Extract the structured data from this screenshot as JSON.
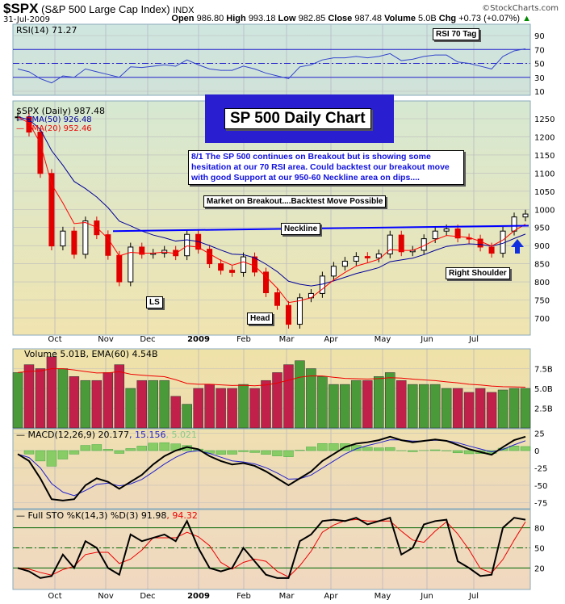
{
  "header": {
    "symbol": "$SPX",
    "name": "(S&P 500 Large Cap Index)",
    "exchange": "INDX",
    "date": "31-Jul-2009",
    "copyright": "©StockCharts.com",
    "open_label": "Open",
    "open": "986.80",
    "high_label": "High",
    "high": "993.18",
    "low_label": "Low",
    "low": "982.85",
    "close_label": "Close",
    "close": "987.48",
    "volume_label": "Volume",
    "volume": "5.0B",
    "chg_label": "Chg",
    "chg": "+0.73 (+0.07%)"
  },
  "legends": {
    "rsi": "RSI(14) 71.27",
    "price": "$SPX (Daily) 987.48",
    "ema50": "EMA(50) 926.48",
    "ema20": "EMA(20) 952.46",
    "volume": "Volume 5.01B, EMA(60) 4.54B",
    "macd": "MACD(12,26,9) 20.177",
    "macd_signal": ", 15.156",
    "macd_hist": ", 5.021",
    "sto": "Full STO %K(14,3) %D(3) 91.98",
    "sto_d": ", 94.32"
  },
  "annotations": {
    "title": "SP 500 Daily Chart",
    "comment": "8/1  The SP 500 continues on Breakout but is showing some hesitation at our 70 RSI area.  Could backtest our breakout move with good Support at our 950-60 Neckline area on dips....",
    "breakout": "Market on Breakout....Backtest Move Possible",
    "neckline": "Neckline",
    "right_shoulder": "Right Shoulder",
    "ls": "LS",
    "head": "Head",
    "rsi_tag": "RSI 70 Tag"
  },
  "colors": {
    "up": "#000000",
    "down": "#e00000",
    "ema20": "#ff0000",
    "ema50": "#000099",
    "neckline": "#0000ff",
    "vol_up": "#4a9a3a",
    "vol_down": "#c0204a"
  },
  "chart_data": {
    "type": "line",
    "x_ticks": [
      "Oct",
      "Nov",
      "Dec",
      "2009",
      "Feb",
      "Mar",
      "Apr",
      "May",
      "Jun",
      "Jul"
    ],
    "price": {
      "y_ticks": [
        700,
        750,
        800,
        850,
        900,
        950,
        1000,
        1050,
        1100,
        1150,
        1200,
        1250
      ],
      "close": [
        1255,
        1213,
        1099,
        899,
        940,
        876,
        968,
        930,
        873,
        800,
        896,
        876,
        879,
        887,
        872,
        931,
        890,
        850,
        832,
        826,
        869,
        827,
        770,
        735,
        683,
        756,
        768,
        816,
        843,
        857,
        870,
        866,
        877,
        929,
        883,
        887,
        919,
        940,
        946,
        921,
        918,
        896,
        879,
        940,
        979,
        987
      ],
      "neckline": [
        940,
        955
      ]
    },
    "rsi": {
      "y_ticks": [
        10,
        30,
        50,
        70,
        90
      ],
      "values": [
        42,
        38,
        28,
        22,
        32,
        30,
        42,
        38,
        34,
        30,
        45,
        44,
        46,
        48,
        46,
        55,
        48,
        42,
        40,
        40,
        46,
        42,
        36,
        32,
        28,
        45,
        48,
        55,
        58,
        58,
        60,
        58,
        60,
        64,
        54,
        56,
        60,
        62,
        62,
        52,
        50,
        46,
        42,
        60,
        68,
        71
      ]
    },
    "volume": {
      "y_ticks": [
        "2.5B",
        "5.0B",
        "7.5B"
      ],
      "values": [
        7,
        8,
        7.5,
        9,
        7.5,
        6.5,
        6,
        6,
        7,
        8,
        5,
        6,
        6,
        6,
        4,
        3,
        5,
        5.5,
        5,
        5,
        5.5,
        5,
        6,
        7,
        8,
        8.5,
        7.5,
        6.5,
        5.5,
        5.5,
        6,
        6,
        6.5,
        7,
        6,
        5.5,
        5.5,
        5.5,
        5,
        5,
        4.5,
        5,
        4.5,
        4.8,
        5,
        5
      ]
    },
    "macd": {
      "y_ticks": [
        -75,
        -50,
        -25,
        0,
        25
      ],
      "values": [
        -5,
        -15,
        -40,
        -70,
        -72,
        -70,
        -50,
        -40,
        -45,
        -55,
        -45,
        -35,
        -20,
        -8,
        0,
        5,
        2,
        -8,
        -15,
        -20,
        -18,
        -22,
        -30,
        -40,
        -50,
        -40,
        -30,
        -15,
        -5,
        5,
        10,
        12,
        15,
        20,
        15,
        12,
        14,
        16,
        14,
        8,
        2,
        -2,
        -6,
        5,
        15,
        20
      ]
    },
    "sto": {
      "y_ticks": [
        20,
        50,
        80
      ],
      "k": [
        20,
        15,
        5,
        8,
        40,
        20,
        60,
        50,
        20,
        10,
        70,
        60,
        65,
        70,
        60,
        90,
        50,
        20,
        15,
        20,
        50,
        30,
        10,
        5,
        5,
        60,
        70,
        90,
        92,
        90,
        95,
        85,
        90,
        95,
        40,
        50,
        85,
        90,
        92,
        30,
        20,
        8,
        10,
        80,
        95,
        92
      ]
    }
  }
}
